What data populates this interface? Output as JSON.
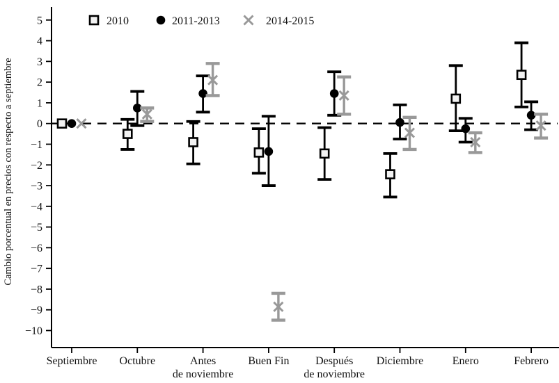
{
  "chart_data": {
    "type": "scatter",
    "subtype": "point-estimates-with-error-bars",
    "title": "",
    "xlabel": "",
    "ylabel": "Cambio porcentual en precios con respecto a septiembre",
    "ylim": [
      -10,
      5
    ],
    "grid": false,
    "zero_reference_line": 0,
    "legend_position": "top-inside",
    "yticks": [
      {
        "v": 5,
        "label": "5"
      },
      {
        "v": 4,
        "label": "4"
      },
      {
        "v": 3,
        "label": "3"
      },
      {
        "v": 2,
        "label": "2"
      },
      {
        "v": 1,
        "label": "1"
      },
      {
        "v": 0,
        "label": "0"
      },
      {
        "v": -1,
        "label": "−1"
      },
      {
        "v": -2,
        "label": "−2"
      },
      {
        "v": -3,
        "label": "−3"
      },
      {
        "v": -4,
        "label": "−4"
      },
      {
        "v": -5,
        "label": "−5"
      },
      {
        "v": -6,
        "label": "−6"
      },
      {
        "v": -7,
        "label": "−7"
      },
      {
        "v": -8,
        "label": "−8"
      },
      {
        "v": -9,
        "label": "−9"
      },
      {
        "v": -10,
        "label": "−10"
      }
    ],
    "categories": [
      {
        "label": "Septiembre",
        "lines": [
          "Septiembre"
        ]
      },
      {
        "label": "Octubre",
        "lines": [
          "Octubre"
        ]
      },
      {
        "label": "Antes de noviembre",
        "lines": [
          "Antes",
          "de noviembre"
        ]
      },
      {
        "label": "Buen Fin",
        "lines": [
          "Buen Fin"
        ]
      },
      {
        "label": "Después de noviembre",
        "lines": [
          "Después",
          "de noviembre"
        ]
      },
      {
        "label": "Diciembre",
        "lines": [
          "Diciembre"
        ]
      },
      {
        "label": "Enero",
        "lines": [
          "Enero"
        ]
      },
      {
        "label": "Febrero",
        "lines": [
          "Febrero"
        ]
      }
    ],
    "series": [
      {
        "name": "2010",
        "marker": "open-square",
        "color": "#000000",
        "marker_fill": "#f2f2f2",
        "points": [
          {
            "y": 0,
            "lo": null,
            "hi": null
          },
          {
            "y": -0.5,
            "lo": -1.25,
            "hi": 0.2
          },
          {
            "y": -0.9,
            "lo": -1.95,
            "hi": 0.1
          },
          {
            "y": -1.4,
            "lo": -2.4,
            "hi": -0.25
          },
          {
            "y": -1.45,
            "lo": -2.7,
            "hi": -0.2
          },
          {
            "y": -2.45,
            "lo": -3.55,
            "hi": -1.45
          },
          {
            "y": 1.2,
            "lo": -0.35,
            "hi": 2.8
          },
          {
            "y": 2.35,
            "lo": 0.8,
            "hi": 3.9
          }
        ]
      },
      {
        "name": "2011-2013",
        "marker": "filled-circle",
        "color": "#000000",
        "marker_fill": "#000000",
        "points": [
          {
            "y": 0,
            "lo": null,
            "hi": null
          },
          {
            "y": 0.75,
            "lo": -0.1,
            "hi": 1.55
          },
          {
            "y": 1.45,
            "lo": 0.55,
            "hi": 2.3
          },
          {
            "y": -1.35,
            "lo": -3.0,
            "hi": 0.35
          },
          {
            "y": 1.45,
            "lo": 0.4,
            "hi": 2.5
          },
          {
            "y": 0.05,
            "lo": -0.75,
            "hi": 0.9
          },
          {
            "y": -0.25,
            "lo": -0.9,
            "hi": 0.25
          },
          {
            "y": 0.4,
            "lo": -0.3,
            "hi": 1.05
          }
        ]
      },
      {
        "name": "2014-2015",
        "marker": "x-cross",
        "color": "#999999",
        "marker_fill": "#999999",
        "points": [
          {
            "y": 0,
            "lo": null,
            "hi": null
          },
          {
            "y": 0.45,
            "lo": 0.1,
            "hi": 0.75
          },
          {
            "y": 2.1,
            "lo": 1.35,
            "hi": 2.9
          },
          {
            "y": -8.85,
            "lo": -9.5,
            "hi": -8.2
          },
          {
            "y": 1.35,
            "lo": 0.45,
            "hi": 2.25
          },
          {
            "y": -0.45,
            "lo": -1.25,
            "hi": 0.3
          },
          {
            "y": -0.9,
            "lo": -1.4,
            "hi": -0.45
          },
          {
            "y": -0.1,
            "lo": -0.7,
            "hi": 0.45
          }
        ]
      }
    ]
  }
}
